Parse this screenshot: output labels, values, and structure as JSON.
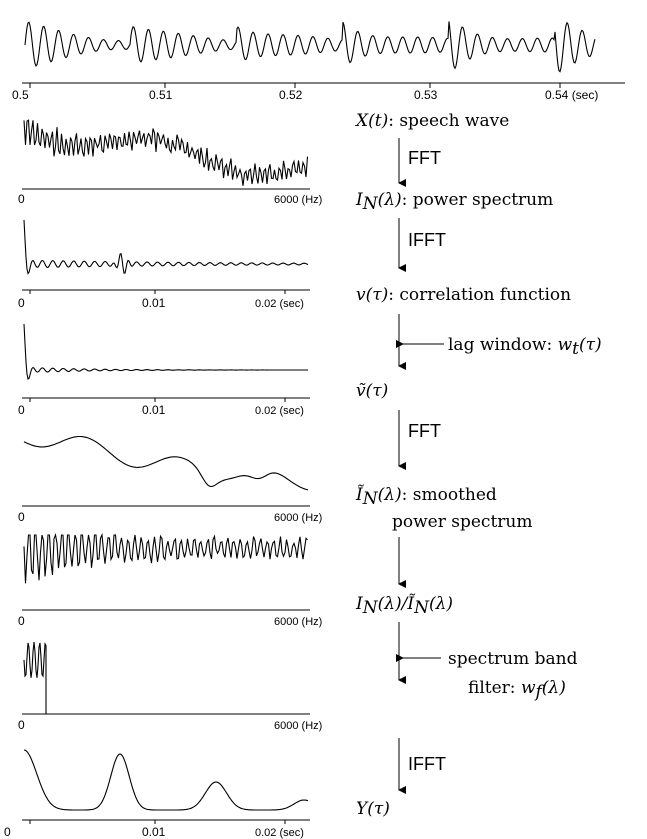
{
  "top_wave": {
    "ticks": [
      "0.5",
      "0.51",
      "0.52",
      "0.53",
      "0.54 (sec)"
    ]
  },
  "panels": [
    {
      "id": "p1",
      "left_tick": "0",
      "right_tick": "6000 (Hz)",
      "mid_tick": ""
    },
    {
      "id": "p2",
      "left_tick": "0",
      "mid_tick": "0.01",
      "right_tick": "0.02 (sec)"
    },
    {
      "id": "p3",
      "left_tick": "0",
      "mid_tick": "0.01",
      "right_tick": "0.02 (sec)"
    },
    {
      "id": "p4",
      "left_tick": "0",
      "right_tick": "6000 (Hz)",
      "mid_tick": ""
    },
    {
      "id": "p5",
      "left_tick": "0",
      "right_tick": "6000 (Hz)",
      "mid_tick": ""
    },
    {
      "id": "p6",
      "left_tick": "0",
      "right_tick": "6000 (Hz)",
      "mid_tick": ""
    },
    {
      "id": "p7",
      "left_tick": "0",
      "mid_tick": "0.01",
      "right_tick": "0.02 (sec)"
    }
  ],
  "flow": {
    "x_label_math": "X(t)",
    "x_label_text": ": speech wave",
    "op1": "FFT",
    "i_label_math": "I",
    "i_label_sub": "N",
    "i_label_arg": "(λ)",
    "i_label_text": ": power spectrum",
    "op2": "IFFT",
    "v_label_math": "v(τ)",
    "v_label_text": ": correlation function",
    "lag_label_text": "lag window: ",
    "lag_label_math": "w",
    "lag_label_sub": "t",
    "lag_label_arg": "(τ)",
    "vt_label_math": "ṽ(τ)",
    "op3": "FFT",
    "it_label_math": "Ĩ",
    "it_label_sub": "N",
    "it_label_arg": "(λ)",
    "it_label_text": ": smoothed",
    "it_label_text2": "power spectrum",
    "ratio_label": "I",
    "ratio_sub1": "N",
    "ratio_mid": "(λ)/Ĩ",
    "ratio_sub2": "N",
    "ratio_end": "(λ)",
    "band_label_text": "spectrum band",
    "band_label_text2": "filter: ",
    "band_label_math": "w",
    "band_label_sub": "f",
    "band_label_arg": "(λ)",
    "op4": "IFFT",
    "y_label_math": "Y(τ)"
  }
}
